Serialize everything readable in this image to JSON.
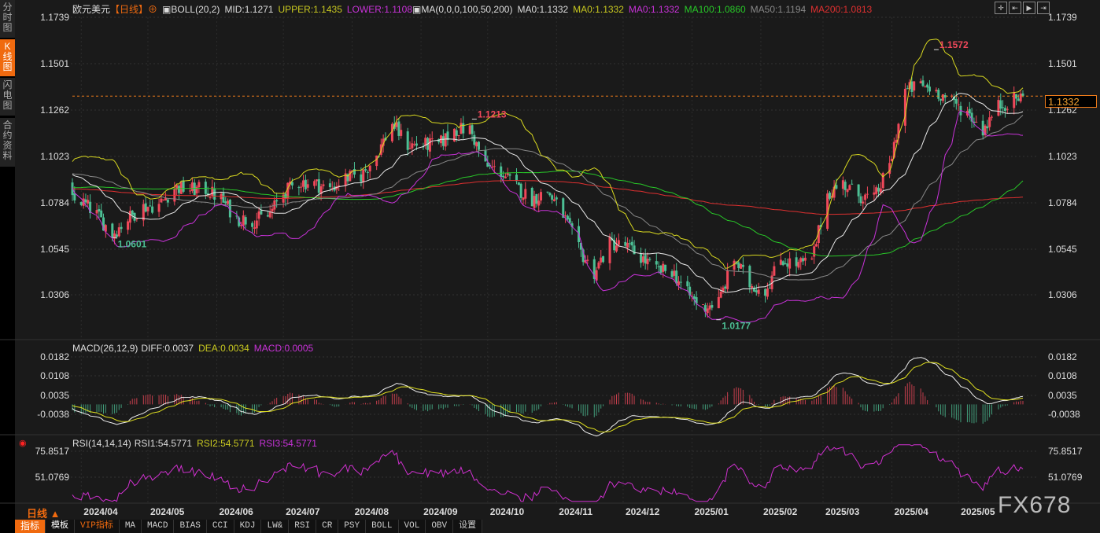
{
  "sidebar": {
    "items": [
      {
        "label": "分时图"
      },
      {
        "label": "K线图",
        "active": true
      },
      {
        "label": "闪电图"
      },
      {
        "label": "合约资料"
      }
    ]
  },
  "header": {
    "symbol": "欧元美元",
    "period": "【日线】",
    "boll": "BOLL(20,2)",
    "boll_mid": "MID:1.1271",
    "boll_upper": "UPPER:1.1435",
    "boll_lower": "LOWER:1.1108",
    "ma": "MA(0,0,0,100,50,200)",
    "ma0a": "MA0:1.1332",
    "ma0b": "MA0:1.1332",
    "ma0c": "MA0:1.1332",
    "ma100": "MA100:1.0860",
    "ma50": "MA50:1.1194",
    "ma200": "MA200:1.0813"
  },
  "toolbar": {
    "icons": [
      "crosshair-icon",
      "zoom-in-icon",
      "play-icon",
      "jump-end-icon"
    ]
  },
  "macd_legend": {
    "title": "MACD(26,12,9)",
    "diff": "DIFF:0.0037",
    "dea": "DEA:0.0034",
    "macd": "MACD:0.0005"
  },
  "rsi_legend": {
    "title": "RSI(14,14,14)",
    "rsi1": "RSI1:54.5771",
    "rsi2": "RSI2:54.5771",
    "rsi3": "RSI3:54.5771"
  },
  "current_price": "1.1332",
  "period_selector": "日线 ▲",
  "watermark": "FX678",
  "tabs": [
    "指标",
    "模板",
    "VIP指标",
    "MA",
    "MACD",
    "BIAS",
    "CCI",
    "KDJ",
    "LW&",
    "RSI",
    "CR",
    "PSY",
    "BOLL",
    "VOL",
    "OBV",
    "设置"
  ],
  "colors": {
    "up": "#f0485a",
    "down": "#4cbf94",
    "boll_mid": "#e8e8e8",
    "boll_upper": "#d8d820",
    "boll_lower": "#c832d8",
    "ma100": "#28c828",
    "ma50": "#888888",
    "ma200": "#e03030",
    "accent": "#f06a0f"
  },
  "chart_data": [
    {
      "type": "candlestick",
      "title": "欧元美元",
      "period": "daily",
      "y_ticks": [
        "1.1739",
        "1.1501",
        "1.1262",
        "1.1023",
        "1.0784",
        "1.0545",
        "1.0306"
      ],
      "x_ticks": [
        "2024/04",
        "2024/05",
        "2024/06",
        "2024/07",
        "2024/08",
        "2024/09",
        "2024/10",
        "2024/11",
        "2024/12",
        "2025/01",
        "2025/02",
        "2025/03",
        "2025/04",
        "2025/05"
      ],
      "ylim": [
        1.0177,
        1.1739
      ],
      "weekly_closes": [
        [
          "2024-04-01",
          1.079
        ],
        [
          "2024-04-08",
          1.072
        ],
        [
          "2024-04-15",
          1.062
        ],
        [
          "2024-04-22",
          1.07
        ],
        [
          "2024-04-29",
          1.076
        ],
        [
          "2024-05-06",
          1.077
        ],
        [
          "2024-05-13",
          1.086
        ],
        [
          "2024-05-20",
          1.085
        ],
        [
          "2024-05-27",
          1.085
        ],
        [
          "2024-06-03",
          1.08
        ],
        [
          "2024-06-10",
          1.07
        ],
        [
          "2024-06-17",
          1.069
        ],
        [
          "2024-06-24",
          1.071
        ],
        [
          "2024-07-01",
          1.083
        ],
        [
          "2024-07-08",
          1.089
        ],
        [
          "2024-07-15",
          1.088
        ],
        [
          "2024-07-22",
          1.085
        ],
        [
          "2024-07-29",
          1.091
        ],
        [
          "2024-08-05",
          1.092
        ],
        [
          "2024-08-12",
          1.103
        ],
        [
          "2024-08-19",
          1.119
        ],
        [
          "2024-08-26",
          1.108
        ],
        [
          "2024-09-02",
          1.108
        ],
        [
          "2024-09-09",
          1.108
        ],
        [
          "2024-09-16",
          1.116
        ],
        [
          "2024-09-23",
          1.116
        ],
        [
          "2024-09-30",
          1.097
        ],
        [
          "2024-10-07",
          1.094
        ],
        [
          "2024-10-14",
          1.086
        ],
        [
          "2024-10-21",
          1.08
        ],
        [
          "2024-10-28",
          1.084
        ],
        [
          "2024-11-04",
          1.072
        ],
        [
          "2024-11-11",
          1.054
        ],
        [
          "2024-11-18",
          1.042
        ],
        [
          "2024-11-25",
          1.057
        ],
        [
          "2024-12-02",
          1.056
        ],
        [
          "2024-12-09",
          1.05
        ],
        [
          "2024-12-16",
          1.043
        ],
        [
          "2024-12-23",
          1.043
        ],
        [
          "2024-12-30",
          1.031
        ],
        [
          "2025-01-06",
          1.024
        ],
        [
          "2025-01-13",
          1.027
        ],
        [
          "2025-01-20",
          1.049
        ],
        [
          "2025-01-27",
          1.036
        ],
        [
          "2025-02-03",
          1.033
        ],
        [
          "2025-02-10",
          1.049
        ],
        [
          "2025-02-17",
          1.046
        ],
        [
          "2025-02-24",
          1.048
        ],
        [
          "2025-03-03",
          1.083
        ],
        [
          "2025-03-10",
          1.088
        ],
        [
          "2025-03-17",
          1.082
        ],
        [
          "2025-03-24",
          1.08
        ],
        [
          "2025-03-31",
          1.097
        ],
        [
          "2025-04-07",
          1.136
        ],
        [
          "2025-04-14",
          1.139
        ],
        [
          "2025-04-21",
          1.136
        ],
        [
          "2025-04-28",
          1.13
        ],
        [
          "2025-05-05",
          1.125
        ],
        [
          "2025-05-12",
          1.116
        ],
        [
          "2025-05-19",
          1.128
        ],
        [
          "2025-05-30",
          1.1332
        ]
      ],
      "annotations": [
        {
          "label": "1.1572",
          "date": "2025-04-21",
          "value": 1.1572,
          "kind": "high"
        },
        {
          "label": "1.1213",
          "date": "2024-09-25",
          "value": 1.1213,
          "kind": "high"
        },
        {
          "label": "1.0601",
          "date": "2024-04-16",
          "value": 1.0601,
          "kind": "low"
        },
        {
          "label": "1.0177",
          "date": "2025-01-13",
          "value": 1.0177,
          "kind": "low"
        }
      ]
    },
    {
      "type": "line",
      "title": "MACD(26,12,9)",
      "y_ticks": [
        "0.0182",
        "0.0108",
        "0.0035",
        "-0.0038"
      ],
      "ylim": [
        -0.0038,
        0.0182
      ]
    },
    {
      "type": "line",
      "title": "RSI(14,14,14)",
      "y_ticks": [
        "75.8517",
        "51.0769"
      ]
    }
  ]
}
